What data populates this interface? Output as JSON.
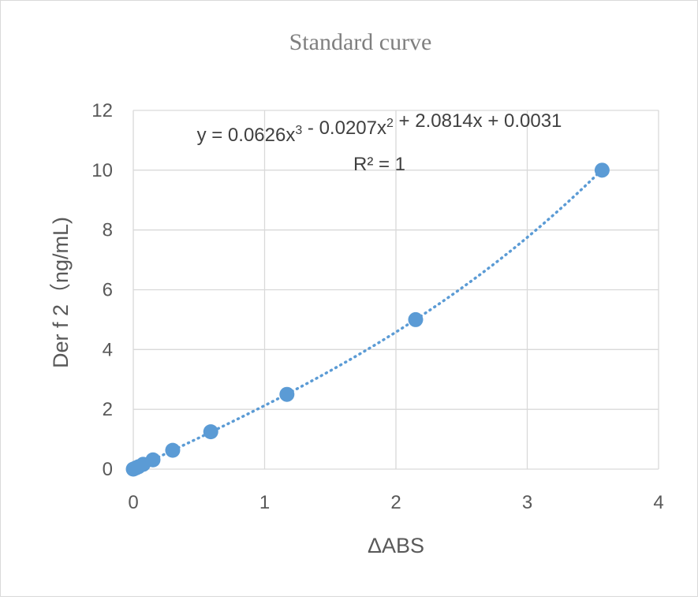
{
  "chart_data": {
    "type": "scatter",
    "title": "Standard curve",
    "xlabel": "ΔABS",
    "ylabel": "Der f 2（ng/mL)",
    "xlim": [
      0,
      4
    ],
    "ylim": [
      0,
      12
    ],
    "xticks": [
      "0",
      "1",
      "2",
      "3",
      "4"
    ],
    "yticks": [
      "0",
      "2",
      "4",
      "6",
      "8",
      "10",
      "12"
    ],
    "grid": true,
    "marker_color": "#5b9bd5",
    "trendline": {
      "type": "polynomial-3",
      "coefficients": [
        0.0626,
        -0.0207,
        2.0814,
        0.0031
      ],
      "style": "dotted",
      "equation": "y = 0.0626x³ - 0.0207x² + 2.0814x + 0.0031",
      "r_squared": "R² = 1"
    },
    "points": [
      {
        "x": 0.0,
        "y": 0.0
      },
      {
        "x": 0.02,
        "y": 0.04
      },
      {
        "x": 0.04,
        "y": 0.08
      },
      {
        "x": 0.075,
        "y": 0.16
      },
      {
        "x": 0.15,
        "y": 0.31
      },
      {
        "x": 0.3,
        "y": 0.63
      },
      {
        "x": 0.59,
        "y": 1.25
      },
      {
        "x": 1.17,
        "y": 2.5
      },
      {
        "x": 2.15,
        "y": 5.0
      },
      {
        "x": 3.57,
        "y": 10.0
      }
    ]
  }
}
